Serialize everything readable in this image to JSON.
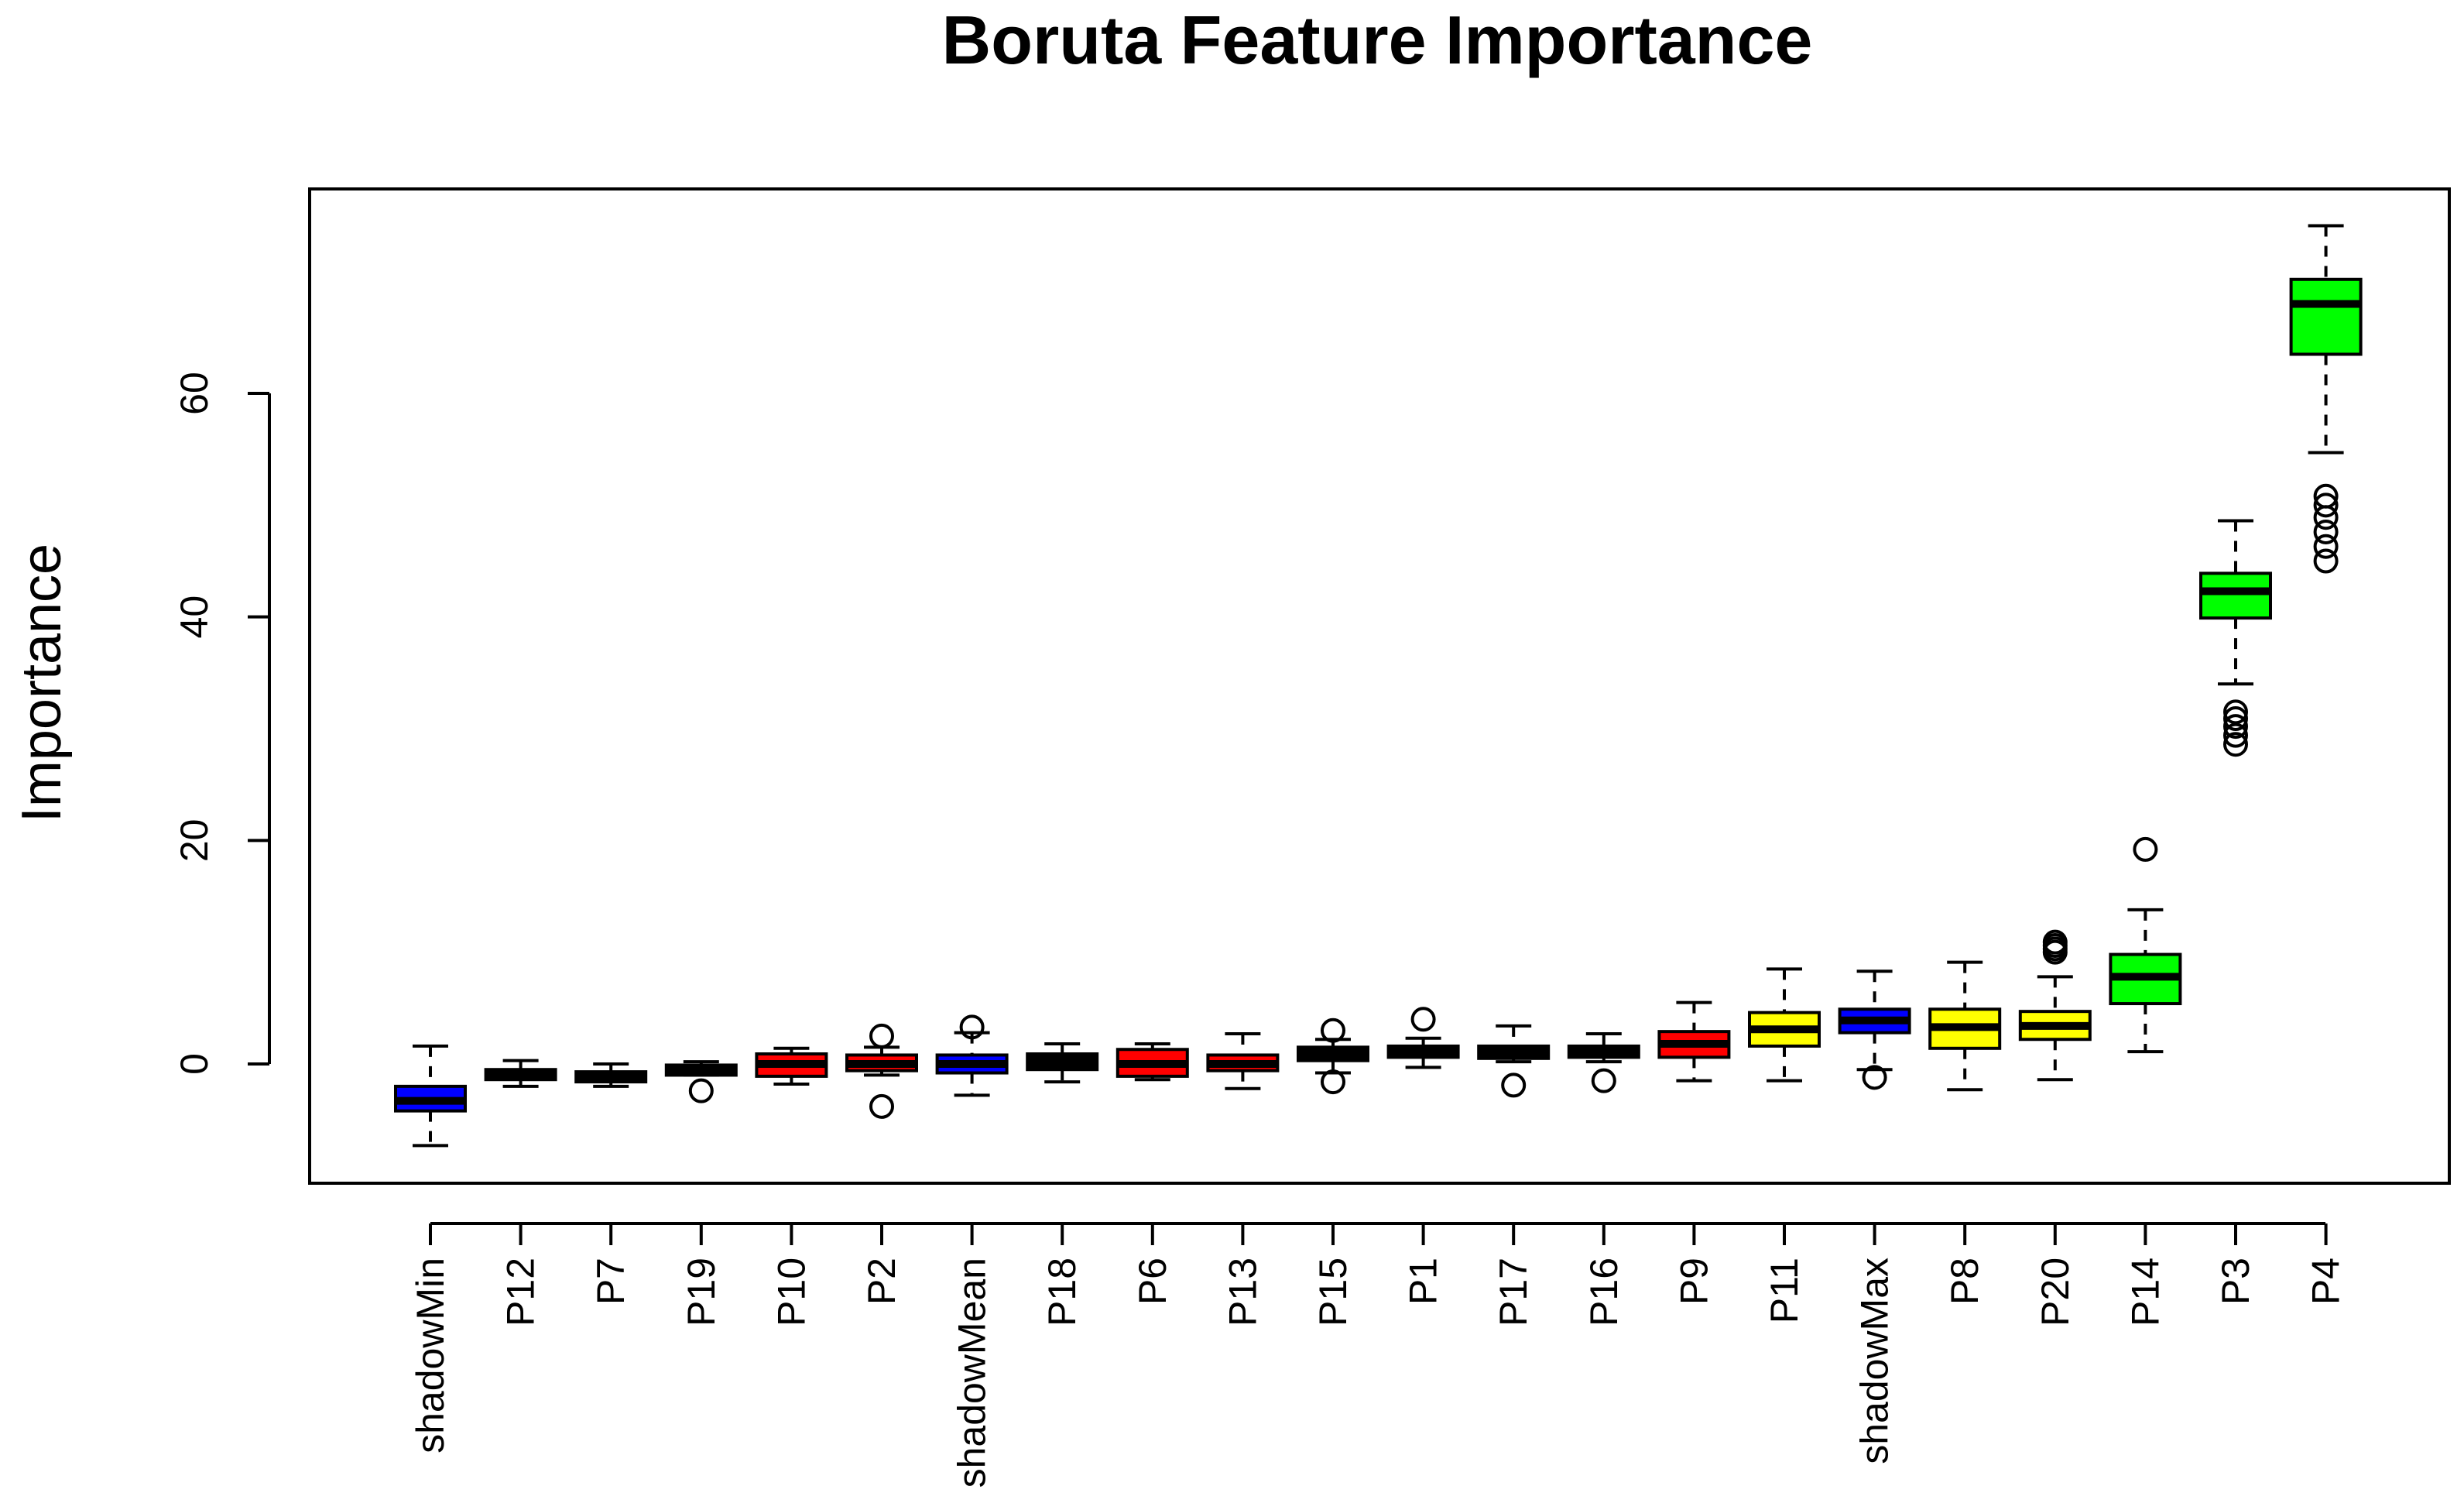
{
  "chart_data": {
    "type": "boxplot",
    "title": "Boruta Feature Importance",
    "xlabel": "",
    "ylabel": "Importance",
    "ylim": [
      -10.5,
      78
    ],
    "yticks": [
      0,
      20,
      40,
      60
    ],
    "yticks_labels": [
      "0",
      "20",
      "40",
      "60"
    ],
    "grid": false,
    "colors": {
      "shadow": "#0000ff",
      "rejected": "#ff0000",
      "tentative": "#ffff00",
      "confirmed": "#00ff00",
      "undecided": "#000000"
    },
    "boxes": [
      {
        "label": "shadowMin",
        "color": "#0000ff",
        "whisker_low": -7.3,
        "q1": -4.2,
        "median": -3.3,
        "q3": -2.0,
        "whisker_high": 1.6,
        "outliers": []
      },
      {
        "label": "P12",
        "color": "#000000",
        "whisker_low": -2.0,
        "q1": -1.4,
        "median": -0.9,
        "q3": -0.5,
        "whisker_high": 0.3,
        "outliers": []
      },
      {
        "label": "P7",
        "color": "#000000",
        "whisker_low": -2.0,
        "q1": -1.6,
        "median": -1.1,
        "q3": -0.7,
        "whisker_high": 0.0,
        "outliers": []
      },
      {
        "label": "P19",
        "color": "#000000",
        "whisker_low": -1.0,
        "q1": -1.0,
        "median": -0.5,
        "q3": -0.1,
        "whisker_high": 0.2,
        "outliers": [
          -2.4
        ]
      },
      {
        "label": "P10",
        "color": "#ff0000",
        "whisker_low": -1.8,
        "q1": -1.1,
        "median": 0.0,
        "q3": 0.9,
        "whisker_high": 1.4,
        "outliers": []
      },
      {
        "label": "P2",
        "color": "#ff0000",
        "whisker_low": -1.0,
        "q1": -0.6,
        "median": 0.0,
        "q3": 0.8,
        "whisker_high": 1.5,
        "outliers": [
          -3.8,
          2.5
        ]
      },
      {
        "label": "shadowMean",
        "color": "#0000ff",
        "whisker_low": -2.8,
        "q1": -0.8,
        "median": 0.0,
        "q3": 0.8,
        "whisker_high": 2.8,
        "outliers": [
          3.3
        ]
      },
      {
        "label": "P18",
        "color": "#000000",
        "whisker_low": -1.6,
        "q1": -0.5,
        "median": 0.0,
        "q3": 0.9,
        "whisker_high": 1.8,
        "outliers": []
      },
      {
        "label": "P6",
        "color": "#ff0000",
        "whisker_low": -1.4,
        "q1": -1.1,
        "median": 0.0,
        "q3": 1.3,
        "whisker_high": 1.8,
        "outliers": []
      },
      {
        "label": "P13",
        "color": "#ff0000",
        "whisker_low": -2.2,
        "q1": -0.6,
        "median": 0.0,
        "q3": 0.8,
        "whisker_high": 2.7,
        "outliers": []
      },
      {
        "label": "P15",
        "color": "#000000",
        "whisker_low": -0.8,
        "q1": 0.3,
        "median": 0.8,
        "q3": 1.5,
        "whisker_high": 2.2,
        "outliers": [
          -1.6,
          3.0
        ]
      },
      {
        "label": "P1",
        "color": "#000000",
        "whisker_low": -0.3,
        "q1": 0.6,
        "median": 1.1,
        "q3": 1.6,
        "whisker_high": 2.3,
        "outliers": [
          4.0
        ]
      },
      {
        "label": "P17",
        "color": "#000000",
        "whisker_low": 0.2,
        "q1": 0.5,
        "median": 1.0,
        "q3": 1.6,
        "whisker_high": 3.4,
        "outliers": [
          -1.9
        ]
      },
      {
        "label": "P16",
        "color": "#000000",
        "whisker_low": 0.2,
        "q1": 0.6,
        "median": 1.1,
        "q3": 1.6,
        "whisker_high": 2.7,
        "outliers": [
          -1.5
        ]
      },
      {
        "label": "P9",
        "color": "#ff0000",
        "whisker_low": -1.5,
        "q1": 0.6,
        "median": 1.8,
        "q3": 2.9,
        "whisker_high": 5.5,
        "outliers": []
      },
      {
        "label": "P11",
        "color": "#ffff00",
        "whisker_low": -1.5,
        "q1": 1.6,
        "median": 3.1,
        "q3": 4.6,
        "whisker_high": 8.5,
        "outliers": []
      },
      {
        "label": "shadowMax",
        "color": "#0000ff",
        "whisker_low": -0.5,
        "q1": 2.8,
        "median": 3.9,
        "q3": 4.9,
        "whisker_high": 8.3,
        "outliers": [
          -1.2
        ]
      },
      {
        "label": "P8",
        "color": "#ffff00",
        "whisker_low": -2.3,
        "q1": 1.4,
        "median": 3.3,
        "q3": 4.9,
        "whisker_high": 9.1,
        "outliers": []
      },
      {
        "label": "P20",
        "color": "#ffff00",
        "whisker_low": -1.4,
        "q1": 2.2,
        "median": 3.4,
        "q3": 4.7,
        "whisker_high": 7.8,
        "outliers": [
          10.0,
          10.3,
          10.6,
          10.9
        ]
      },
      {
        "label": "P14",
        "color": "#00ff00",
        "whisker_low": 1.1,
        "q1": 5.4,
        "median": 7.8,
        "q3": 9.8,
        "whisker_high": 13.8,
        "outliers": [
          19.2
        ]
      },
      {
        "label": "P3",
        "color": "#00ff00",
        "whisker_low": 34.0,
        "q1": 39.9,
        "median": 42.3,
        "q3": 43.9,
        "whisker_high": 48.6,
        "outliers": [
          28.6,
          29.4,
          30.2,
          30.9,
          31.5
        ]
      },
      {
        "label": "P4",
        "color": "#00ff00",
        "whisker_low": 54.7,
        "q1": 63.5,
        "median": 68.0,
        "q3": 70.2,
        "whisker_high": 75.0,
        "outliers": [
          45.0,
          46.3,
          47.6,
          48.9,
          50.0,
          50.8
        ]
      }
    ]
  }
}
